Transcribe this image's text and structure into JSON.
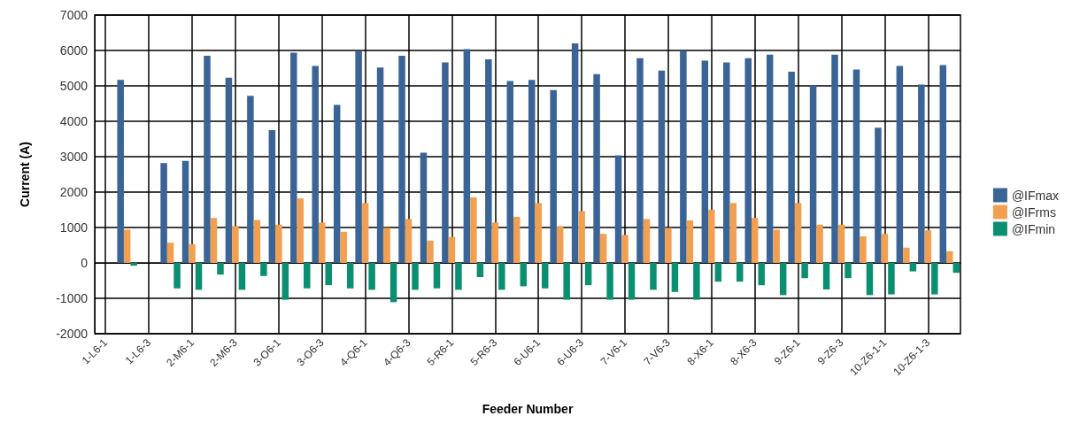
{
  "chart_data": {
    "type": "bar",
    "xlabel": "Feeder Number",
    "ylabel": "Current (A)",
    "categories": [
      "1-L6-1",
      null,
      "1-L6-3",
      null,
      "2-M6-1",
      null,
      "2-M6-3",
      null,
      "3-O6-1",
      null,
      "3-O6-3",
      null,
      "4-Q6-1",
      null,
      "4-Q6-3",
      null,
      "5-R6-1",
      null,
      "5-R6-3",
      null,
      "6-U6-1",
      null,
      "6-U6-3",
      null,
      "7-V6-1",
      null,
      "7-V6-3",
      null,
      "8-X6-1",
      null,
      "8-X6-3",
      null,
      "9-Z6-1",
      null,
      "9-Z6-3",
      null,
      "10-Z6-1-1",
      null,
      "10-Z6-1-3",
      null
    ],
    "series": [
      {
        "name": "@IFmax",
        "color": "#3a6496",
        "values": [
          null,
          5170,
          null,
          2820,
          2880,
          5850,
          5230,
          4720,
          3750,
          5940,
          5560,
          4460,
          5990,
          5520,
          5850,
          3110,
          5660,
          6040,
          5750,
          5140,
          5170,
          4880,
          6200,
          5330,
          3040,
          5780,
          5430,
          5990,
          5710,
          5660,
          5780,
          5880,
          5400,
          5010,
          5880,
          5460,
          3820,
          5560,
          5040,
          5590
        ]
      },
      {
        "name": "@IFrms",
        "color": "#f0a050",
        "values": [
          null,
          940,
          null,
          570,
          530,
          1270,
          1040,
          1210,
          1080,
          1820,
          1140,
          880,
          1690,
          990,
          1240,
          630,
          730,
          1850,
          1140,
          1300,
          1690,
          1040,
          1460,
          820,
          790,
          1240,
          990,
          1200,
          1500,
          1690,
          1270,
          940,
          1690,
          1080,
          1080,
          750,
          820,
          430,
          920,
          330
        ]
      },
      {
        "name": "@IFmin",
        "color": "#0a9070",
        "values": [
          null,
          -80,
          null,
          -720,
          -760,
          -330,
          -760,
          -370,
          -1040,
          -720,
          -630,
          -720,
          -760,
          -1110,
          -760,
          -720,
          -760,
          -400,
          -760,
          -660,
          -720,
          -1040,
          -630,
          -1040,
          -1040,
          -760,
          -820,
          -1040,
          -530,
          -530,
          -630,
          -910,
          -430,
          -750,
          -430,
          -910,
          -890,
          -240,
          -890,
          -280
        ]
      }
    ],
    "ylim": [
      -2000,
      7000
    ],
    "yticks": [
      -2000,
      -1000,
      0,
      1000,
      2000,
      3000,
      4000,
      5000,
      6000,
      7000
    ],
    "grid": true,
    "legend": "right"
  }
}
